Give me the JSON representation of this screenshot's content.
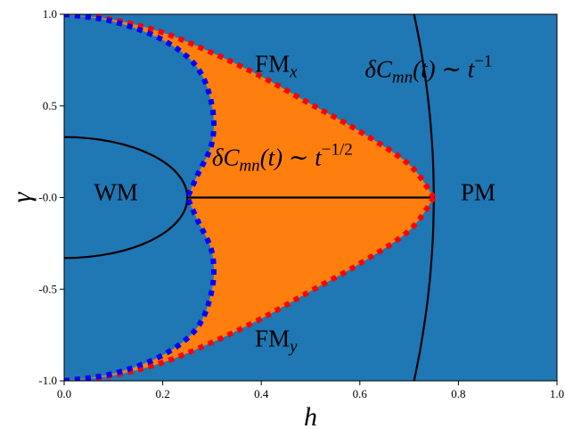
{
  "chart_data": {
    "type": "phase_diagram",
    "xlabel": "h",
    "ylabel": "γ",
    "xlim": [
      0.0,
      1.0
    ],
    "ylim": [
      -1.0,
      1.0
    ],
    "xticks": [
      {
        "value": 0.0,
        "label": "0.0"
      },
      {
        "value": 0.2,
        "label": "0.2"
      },
      {
        "value": 0.4,
        "label": "0.4"
      },
      {
        "value": 0.6,
        "label": "0.6"
      },
      {
        "value": 0.8,
        "label": "0.8"
      },
      {
        "value": 1.0,
        "label": "1.0"
      }
    ],
    "yticks": [
      {
        "value": 1.0,
        "label": "1.0"
      },
      {
        "value": 0.5,
        "label": "0.5"
      },
      {
        "value": 0.0,
        "label": "-0.0"
      },
      {
        "value": -0.5,
        "label": "-0.5"
      },
      {
        "value": -1.0,
        "label": "-1.0"
      }
    ],
    "colors": {
      "background_region": "#1f77b4",
      "orange_region": "#ff7f0e",
      "red_dotted_boundary": "#ff0000",
      "blue_dotted_boundary": "#0000ff",
      "solid_lines": "#000000"
    },
    "regions": [
      {
        "id": "WM",
        "label": "WM",
        "at": [
          0.105,
          0.03
        ]
      },
      {
        "id": "PM",
        "label": "PM",
        "at": [
          0.84,
          0.03
        ]
      },
      {
        "id": "FMx",
        "label": "FM",
        "subscript": "x",
        "at": [
          0.43,
          0.73
        ]
      },
      {
        "id": "FMy",
        "label": "FM",
        "subscript": "y",
        "at": [
          0.43,
          -0.77
        ]
      }
    ],
    "annotations": [
      {
        "id": "decay-upper",
        "prefix": "δC",
        "subscript": "mn",
        "suffix": "(t) ∼ t",
        "superscript": "−1",
        "at": [
          0.61,
          0.7
        ]
      },
      {
        "id": "decay-middle",
        "prefix": "δC",
        "subscript": "mn",
        "suffix": "(t) ∼ t",
        "superscript": "−1/2",
        "at": [
          0.3,
          0.22
        ]
      }
    ],
    "curves": {
      "ellipse_wm": {
        "description": "(h/0.25)^2 + (γ/0.33)^2 = 1",
        "h_semi": 0.25,
        "gamma_semi": 0.33
      },
      "outer_circle": {
        "description": "h^2 + γ^2 = 0.75^2 ... scaled",
        "h_at_zero": 0.75,
        "h_at_pm1": 0.71
      },
      "segment": {
        "from": [
          0.25,
          0.0
        ],
        "to": [
          0.75,
          0.0
        ]
      },
      "red_boundary_upper": [
        [
          0.0,
          1.0
        ],
        [
          0.1,
          0.97
        ],
        [
          0.2,
          0.9
        ],
        [
          0.3,
          0.79
        ],
        [
          0.4,
          0.66
        ],
        [
          0.5,
          0.51
        ],
        [
          0.6,
          0.36
        ],
        [
          0.7,
          0.18
        ],
        [
          0.75,
          0.0
        ]
      ],
      "blue_boundary_upper": [
        [
          0.0,
          1.0
        ],
        [
          0.1,
          0.96
        ],
        [
          0.2,
          0.86
        ],
        [
          0.27,
          0.71
        ],
        [
          0.3,
          0.5
        ],
        [
          0.3,
          0.3
        ],
        [
          0.27,
          0.12
        ],
        [
          0.25,
          0.0
        ]
      ]
    }
  }
}
